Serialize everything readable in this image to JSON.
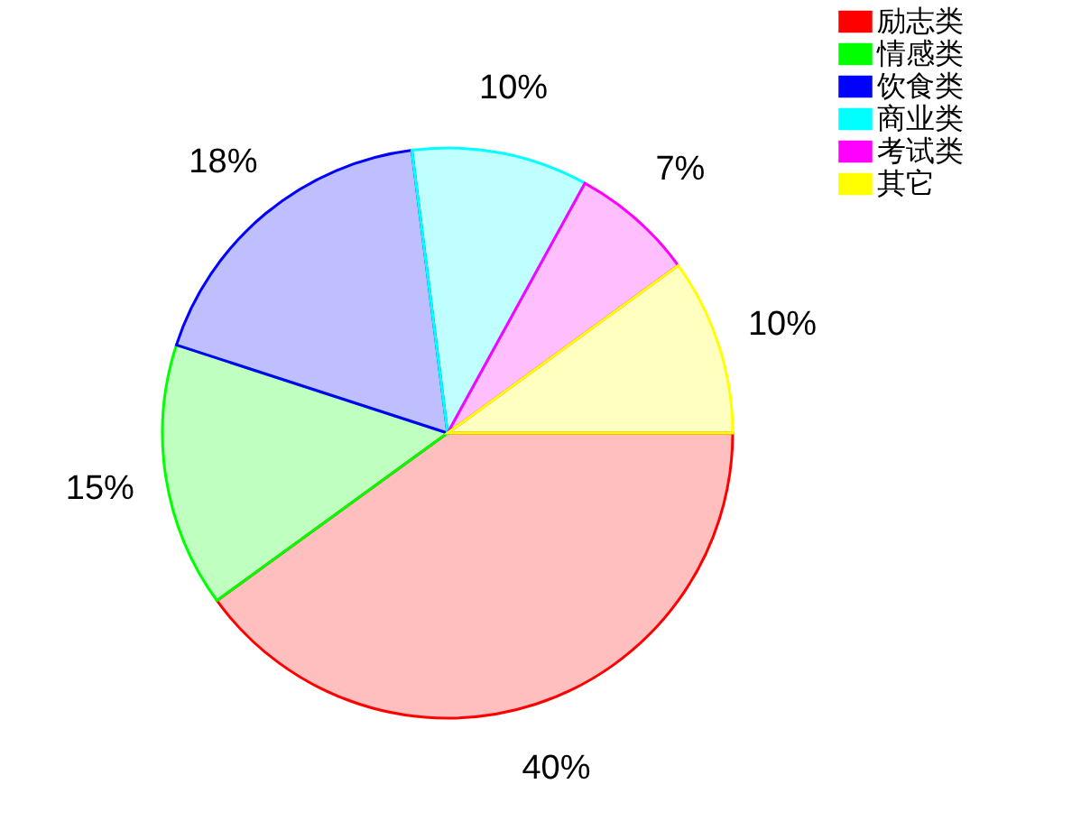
{
  "chart_data": {
    "type": "pie",
    "categories": [
      "励志类",
      "情感类",
      "饮食类",
      "商业类",
      "考试类",
      "其它"
    ],
    "values": [
      40,
      15,
      18,
      10,
      7,
      10
    ],
    "colors": [
      "#ff0000",
      "#00ff00",
      "#0000ff",
      "#00ffff",
      "#ff00ff",
      "#ffff00"
    ],
    "value_labels": [
      "40%",
      "15%",
      "18%",
      "10%",
      "7%",
      "10%"
    ],
    "legend": "top right"
  }
}
